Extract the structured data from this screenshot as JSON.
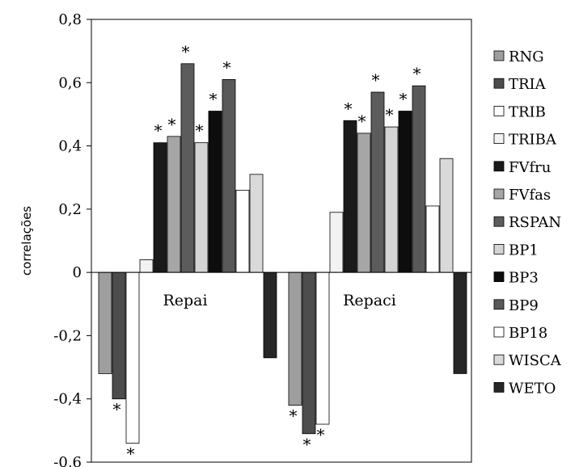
{
  "chart_data": {
    "type": "bar",
    "categories": [
      "Repai",
      "Repaci"
    ],
    "ylabel": "correlações",
    "ylim": [
      -0.6,
      0.8
    ],
    "y_ticks": [
      "-0,6",
      "-0,4",
      "-0,2",
      "0",
      "0,2",
      "0,4",
      "0,6",
      "0,8"
    ],
    "grid": false,
    "legend_position": "right",
    "significance_marker": "*",
    "series": [
      {
        "name": "RNG",
        "color": "#9e9e9e",
        "values": [
          -0.32,
          -0.42
        ],
        "significant": [
          false,
          true
        ]
      },
      {
        "name": "TRIA",
        "color": "#4d4d4d",
        "values": [
          -0.4,
          -0.51
        ],
        "significant": [
          true,
          true
        ]
      },
      {
        "name": "TRIB",
        "color": "#ffffff",
        "values": [
          -0.54,
          -0.48
        ],
        "significant": [
          true,
          true
        ]
      },
      {
        "name": "TRIBA",
        "color": "#f2f2f2",
        "values": [
          0.04,
          0.19
        ],
        "significant": [
          false,
          false
        ]
      },
      {
        "name": "FVfru",
        "color": "#1a1a1a",
        "values": [
          0.41,
          0.48
        ],
        "significant": [
          true,
          true
        ]
      },
      {
        "name": "FVfas",
        "color": "#a6a6a6",
        "values": [
          0.43,
          0.44
        ],
        "significant": [
          true,
          true
        ]
      },
      {
        "name": "RSPAN",
        "color": "#5c5c5c",
        "values": [
          0.66,
          0.57
        ],
        "significant": [
          true,
          true
        ]
      },
      {
        "name": "BP1",
        "color": "#d4d4d4",
        "values": [
          0.41,
          0.46
        ],
        "significant": [
          true,
          true
        ]
      },
      {
        "name": "BP3",
        "color": "#0d0d0d",
        "values": [
          0.51,
          0.51
        ],
        "significant": [
          true,
          true
        ]
      },
      {
        "name": "BP9",
        "color": "#595959",
        "values": [
          0.61,
          0.59
        ],
        "significant": [
          true,
          true
        ]
      },
      {
        "name": "BP18",
        "color": "#ffffff",
        "values": [
          0.26,
          0.21
        ],
        "significant": [
          false,
          false
        ]
      },
      {
        "name": "WISCA",
        "color": "#d9d9d9",
        "values": [
          0.31,
          0.36
        ],
        "significant": [
          false,
          false
        ]
      },
      {
        "name": "WETO",
        "color": "#262626",
        "values": [
          -0.27,
          -0.32
        ],
        "significant": [
          false,
          false
        ]
      }
    ]
  }
}
